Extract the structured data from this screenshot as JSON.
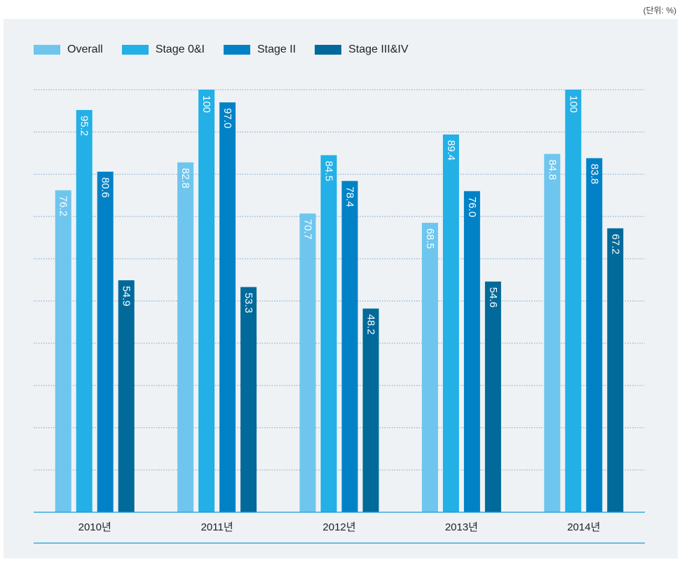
{
  "unit_label": "(단위: %)",
  "chart_data": {
    "type": "bar",
    "title": "",
    "xlabel": "",
    "ylabel": "",
    "ylim": [
      0,
      100
    ],
    "grid": true,
    "legend_position": "top-left",
    "categories": [
      "2010년",
      "2011년",
      "2012년",
      "2013년",
      "2014년"
    ],
    "series": [
      {
        "name": "Overall",
        "color": "#6ec6ee",
        "values": [
          76.2,
          82.8,
          70.7,
          68.5,
          84.8
        ]
      },
      {
        "name": "Stage 0&I",
        "color": "#22b0e6",
        "values": [
          95.2,
          100,
          84.5,
          89.4,
          100
        ]
      },
      {
        "name": "Stage II",
        "color": "#0282c6",
        "values": [
          80.6,
          97.0,
          78.4,
          76.0,
          83.8
        ]
      },
      {
        "name": "Stage III&IV",
        "color": "#016a9a",
        "values": [
          54.9,
          53.3,
          48.2,
          54.6,
          67.2
        ]
      }
    ],
    "value_labels": [
      [
        "76.2",
        "82.8",
        "70.7",
        "68.5",
        "84.8"
      ],
      [
        "95.2",
        "100",
        "84.5",
        "89.4",
        "100"
      ],
      [
        "80.6",
        "97.0",
        "78.4",
        "76.0",
        "83.8"
      ],
      [
        "54.9",
        "53.3",
        "48.2",
        "54.6",
        "67.2"
      ]
    ]
  }
}
